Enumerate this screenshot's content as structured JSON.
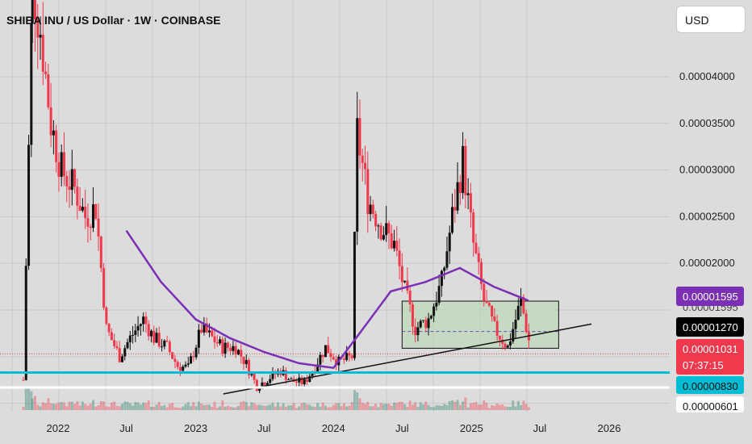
{
  "chart_data": {
    "type": "candlestick",
    "title": "SHIBA INU / US Dollar · 1W · COINBASE",
    "currency": "USD",
    "y_ticks": [
      "0.00004000",
      "0.00003500",
      "0.00003000",
      "0.00002500",
      "0.00002000"
    ],
    "x_ticks": [
      "2022",
      "Jul",
      "2023",
      "Jul",
      "2024",
      "Jul",
      "2025",
      "Jul",
      "2026"
    ],
    "price_tags": [
      {
        "label": "0.00001595",
        "partial": "0.00001595",
        "color": "#7b2fb5"
      },
      {
        "label": "0.00001270",
        "color": "#000000"
      },
      {
        "label": "0.00001031",
        "timer": "07:37:15",
        "color": "#f0394c"
      },
      {
        "label": "0.00000830",
        "color": "#00bcd4"
      },
      {
        "label": "0.00000601",
        "color": "#ffffff"
      }
    ],
    "key_levels": {
      "support": 8.3e-06,
      "resistance_box_top": 1.595e-05,
      "resistance_box_bottom": 1.09e-05,
      "box_mid": 1.27e-05,
      "current_price": 1.031e-05
    },
    "price_path": [
      [
        "2021-10-01",
        7.5e-06
      ],
      [
        "2021-10-25",
        5e-05
      ],
      [
        "2021-11-15",
        4.5e-05
      ],
      [
        "2021-12-13",
        3.5e-05
      ],
      [
        "2022-01-10",
        3e-05
      ],
      [
        "2022-02-14",
        2.8e-05
      ],
      [
        "2022-03-14",
        2.5e-05
      ],
      [
        "2022-04-11",
        2.6e-05
      ],
      [
        "2022-05-09",
        1.3e-05
      ],
      [
        "2022-06-13",
        1e-05
      ],
      [
        "2022-07-11",
        1.2e-05
      ],
      [
        "2022-08-15",
        1.4e-05
      ],
      [
        "2022-09-12",
        1.2e-05
      ],
      [
        "2022-10-17",
        1.1e-05
      ],
      [
        "2022-11-14",
        9e-06
      ],
      [
        "2022-12-12",
        8.8e-06
      ],
      [
        "2023-01-16",
        1.3e-05
      ],
      [
        "2023-02-13",
        1.2e-05
      ],
      [
        "2023-03-13",
        1.1e-05
      ],
      [
        "2023-04-17",
        1.1e-05
      ],
      [
        "2023-05-15",
        9.2e-06
      ],
      [
        "2023-06-12",
        6.8e-06
      ],
      [
        "2023-07-17",
        7.8e-06
      ],
      [
        "2023-08-14",
        8.5e-06
      ],
      [
        "2023-09-11",
        7.4e-06
      ],
      [
        "2023-10-16",
        7.2e-06
      ],
      [
        "2023-11-13",
        9e-06
      ],
      [
        "2023-12-11",
        1.1e-05
      ],
      [
        "2024-01-15",
        9.4e-06
      ],
      [
        "2024-02-19",
        1e-05
      ],
      [
        "2024-03-04",
        3.4e-05
      ],
      [
        "2024-04-01",
        2.7e-05
      ],
      [
        "2024-05-06",
        2.4e-05
      ],
      [
        "2024-06-10",
        2.2e-05
      ],
      [
        "2024-07-08",
        1.7e-05
      ],
      [
        "2024-08-05",
        1.3e-05
      ],
      [
        "2024-09-09",
        1.4e-05
      ],
      [
        "2024-10-14",
        1.8e-05
      ],
      [
        "2024-11-11",
        2.5e-05
      ],
      [
        "2024-12-09",
        3.1e-05
      ],
      [
        "2025-01-06",
        2.2e-05
      ],
      [
        "2025-02-03",
        1.6e-05
      ],
      [
        "2025-03-03",
        1.3e-05
      ],
      [
        "2025-04-07",
        1.1e-05
      ],
      [
        "2025-05-12",
        1.6e-05
      ],
      [
        "2025-06-09",
        1.031e-05
      ]
    ],
    "moving_average": [
      [
        "2022-07-01",
        2.35e-05
      ],
      [
        "2022-10-01",
        1.8e-05
      ],
      [
        "2023-01-01",
        1.4e-05
      ],
      [
        "2023-04-01",
        1.2e-05
      ],
      [
        "2023-07-01",
        1.05e-05
      ],
      [
        "2023-10-01",
        9.3e-06
      ],
      [
        "2024-01-01",
        8.8e-06
      ],
      [
        "2024-03-01",
        1.2e-05
      ],
      [
        "2024-06-01",
        1.7e-05
      ],
      [
        "2024-09-01",
        1.8e-05
      ],
      [
        "2024-12-01",
        1.95e-05
      ],
      [
        "2025-03-01",
        1.75e-05
      ],
      [
        "2025-06-01",
        1.6e-05
      ]
    ],
    "trendline": [
      [
        "2023-03-15",
        6e-06
      ],
      [
        "2025-11-15",
        1.35e-05
      ]
    ],
    "grid": true
  }
}
